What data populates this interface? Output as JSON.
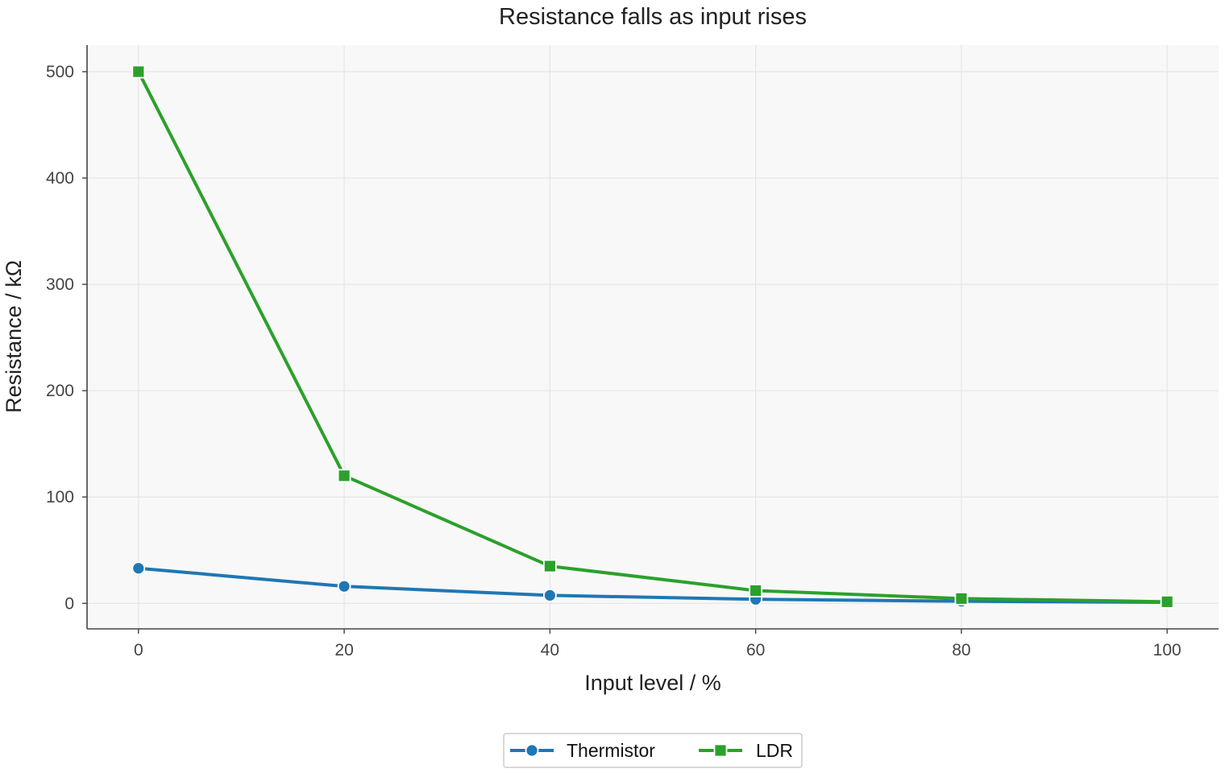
{
  "chart_data": {
    "type": "line",
    "title": "Resistance falls as input rises",
    "xlabel": "Input level / %",
    "ylabel": "Resistance / kΩ",
    "x": [
      0,
      20,
      40,
      60,
      80,
      100
    ],
    "xlim": [
      -5,
      105
    ],
    "ylim": [
      -24,
      525
    ],
    "xticks": [
      0,
      20,
      40,
      60,
      80,
      100
    ],
    "yticks": [
      0,
      100,
      200,
      300,
      400,
      500
    ],
    "grid": true,
    "legend_position": "bottom-center",
    "series": [
      {
        "name": "Thermistor",
        "values": [
          33,
          16,
          7.5,
          3.8,
          2,
          1
        ],
        "color": "#1f77b4",
        "marker": "circle"
      },
      {
        "name": "LDR",
        "values": [
          500,
          120,
          35,
          12,
          4.5,
          1.5
        ],
        "color": "#2ca02c",
        "marker": "square"
      }
    ]
  }
}
